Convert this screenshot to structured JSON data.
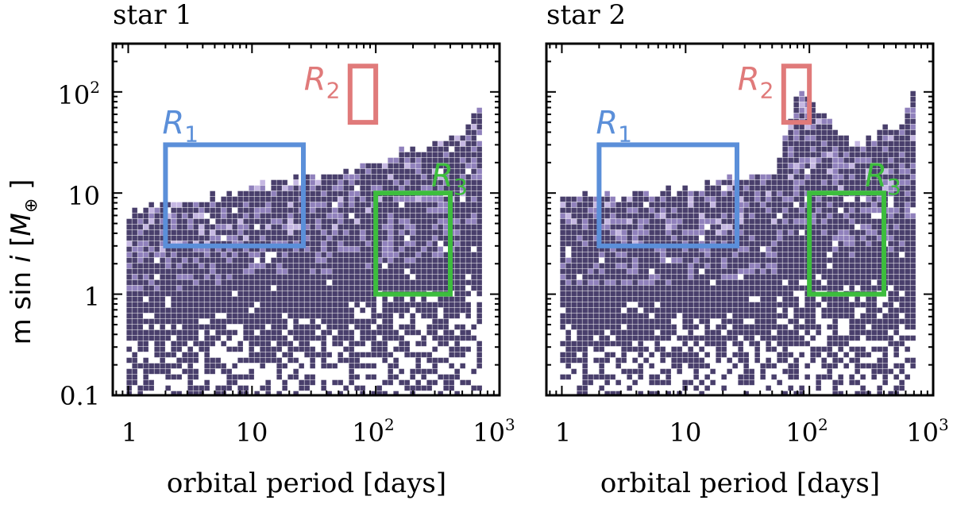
{
  "figure": {
    "ylabel_parts": {
      "prefix": "m sin ",
      "var_i": "i",
      "bracket_open": " [",
      "var_M": "M",
      "sub_earth": "⊕",
      "bracket_close": " ]"
    },
    "xtick_labels": {
      "t1": "1",
      "t10": "10",
      "t100_base": "10",
      "t100_exp": "2",
      "t1000_base": "10",
      "t1000_exp": "3"
    },
    "ytick_labels": {
      "t01": "0.1",
      "t1": "1",
      "t10": "10",
      "t100_base": "10",
      "t100_exp": "2"
    },
    "point_color": "#3f3564",
    "dense_color": "#8a7ab8",
    "light_color": "#c2b3e0"
  },
  "chart_data": [
    {
      "type": "scatter",
      "title": "star 1",
      "xlabel": "orbital period [days]",
      "ylabel": "m sin i [M⊕]",
      "xscale": "log",
      "yscale": "log",
      "xlim": [
        0.75,
        1000
      ],
      "ylim": [
        0.1,
        300
      ],
      "grid": false,
      "density_description": "hexbin-style density of injected signals; upper envelope rises from ~8 M⊕ at 1 d to ~100 M⊕ at 700 d",
      "upper_envelope": {
        "x": [
          1,
          2,
          5,
          10,
          20,
          50,
          100,
          200,
          500,
          700
        ],
        "y": [
          8,
          9,
          10,
          12,
          14,
          18,
          22,
          30,
          45,
          100
        ]
      },
      "regions": [
        {
          "label": "R",
          "subscript": "1",
          "color": "#5b8fd9",
          "x": [
            2,
            26
          ],
          "y": [
            3,
            30
          ]
        },
        {
          "label": "R",
          "subscript": "2",
          "color": "#e07a7a",
          "x": [
            62,
            100
          ],
          "y": [
            50,
            180
          ]
        },
        {
          "label": "R",
          "subscript": "3",
          "color": "#3dbd3d",
          "x": [
            100,
            400
          ],
          "y": [
            1,
            10
          ]
        }
      ]
    },
    {
      "type": "scatter",
      "title": "star 2",
      "xlabel": "orbital period [days]",
      "ylabel": "m sin i [M⊕]",
      "xscale": "log",
      "yscale": "log",
      "xlim": [
        0.75,
        1000
      ],
      "ylim": [
        0.1,
        300
      ],
      "grid": false,
      "density_description": "hexbin-style density of injected signals with a dense vertical streak near 75 d",
      "upper_envelope": {
        "x": [
          1,
          2,
          5,
          10,
          20,
          50,
          80,
          200,
          500,
          700
        ],
        "y": [
          10,
          10,
          11,
          12,
          14,
          18,
          140,
          30,
          50,
          120
        ]
      },
      "regions": [
        {
          "label": "R",
          "subscript": "1",
          "color": "#5b8fd9",
          "x": [
            2,
            26
          ],
          "y": [
            3,
            30
          ]
        },
        {
          "label": "R",
          "subscript": "2",
          "color": "#e07a7a",
          "x": [
            62,
            100
          ],
          "y": [
            50,
            180
          ]
        },
        {
          "label": "R",
          "subscript": "3",
          "color": "#3dbd3d",
          "x": [
            100,
            400
          ],
          "y": [
            1,
            10
          ]
        }
      ]
    }
  ]
}
